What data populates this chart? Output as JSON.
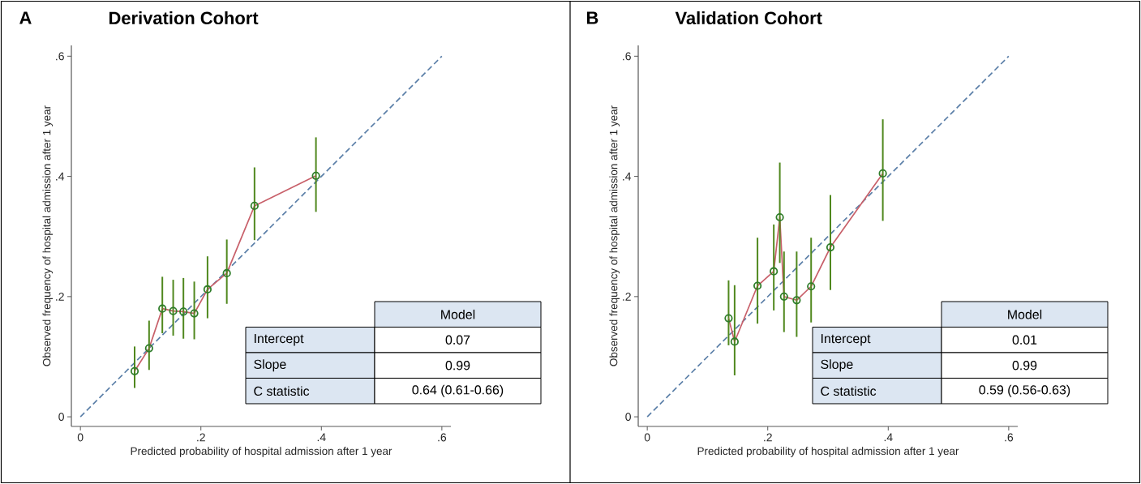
{
  "chart_data": [
    {
      "type": "scatter",
      "title": "Derivation Cohort",
      "xlabel": "Predicted probability of hospital admission after 1 year",
      "ylabel": "Observed frequency of hospital admission after 1 year",
      "annotations": [
        "A",
        "Model",
        "Intercept",
        "0.07",
        "Slope",
        "0.99",
        "C statistic",
        "0.64 (0.61-0.66)"
      ],
      "xlim": [
        -0.015,
        0.615
      ],
      "ylim": [
        -0.016,
        0.618
      ],
      "xticks": [
        0,
        {
          "value": 0.2,
          "label": ".2"
        },
        {
          "value": 0.4,
          "label": ".4"
        },
        {
          "value": 0.6,
          "label": ".6"
        }
      ],
      "yticks": [
        0,
        {
          "value": 0.2,
          "label": ".2"
        },
        {
          "value": 0.4,
          "label": ".4"
        },
        {
          "value": 0.6,
          "label": ".6"
        }
      ],
      "series": [
        {
          "type": "line",
          "color": "#5b7fa8",
          "line_style": "dashed",
          "x": [
            0,
            0.6
          ],
          "values": [
            0,
            0.6
          ]
        },
        {
          "type": "line",
          "color": "#c8606a",
          "x": [
            0.09,
            0.114,
            0.136,
            0.154,
            0.171,
            0.189,
            0.211,
            0.243,
            0.289,
            0.391
          ],
          "values": [
            0.076,
            0.114,
            0.18,
            0.176,
            0.175,
            0.172,
            0.212,
            0.239,
            0.351,
            0.401
          ]
        },
        {
          "color": "#2f7d2a",
          "marker": "circle",
          "x": [
            0.09,
            0.114,
            0.136,
            0.154,
            0.171,
            0.189,
            0.211,
            0.243,
            0.289,
            0.391
          ],
          "values": [
            0.076,
            0.114,
            0.18,
            0.176,
            0.175,
            0.172,
            0.212,
            0.239,
            0.351,
            0.401
          ],
          "errors": [
            [
              0.048,
              0.117
            ],
            [
              0.078,
              0.16
            ],
            [
              0.139,
              0.233
            ],
            [
              0.135,
              0.228
            ],
            [
              0.13,
              0.231
            ],
            [
              0.129,
              0.225
            ],
            [
              0.164,
              0.267
            ],
            [
              0.188,
              0.295
            ],
            [
              0.294,
              0.415
            ],
            [
              0.341,
              0.465
            ]
          ]
        }
      ]
    },
    {
      "type": "scatter",
      "title": "Validation Cohort",
      "xlabel": "Predicted probability of hospital admission after 1 year",
      "ylabel": "Observed frequency of hospital admission after 1 year",
      "annotations": [
        "B",
        "Model",
        "Intercept",
        "0.01",
        "Slope",
        "0.99",
        "C statistic",
        "0.59 (0.56-0.63)"
      ],
      "xlim": [
        -0.015,
        0.615
      ],
      "ylim": [
        -0.016,
        0.618
      ],
      "xticks": [
        0,
        {
          "value": 0.2,
          "label": ".2"
        },
        {
          "value": 0.4,
          "label": ".4"
        },
        {
          "value": 0.6,
          "label": ".6"
        }
      ],
      "yticks": [
        0,
        {
          "value": 0.2,
          "label": ".2"
        },
        {
          "value": 0.4,
          "label": ".4"
        },
        {
          "value": 0.6,
          "label": ".6"
        }
      ],
      "series": [
        {
          "type": "line",
          "color": "#5b7fa8",
          "line_style": "dashed",
          "x": [
            0,
            0.6
          ],
          "values": [
            0,
            0.6
          ]
        },
        {
          "type": "line",
          "color": "#c8606a",
          "x": [
            0.135,
            0.145,
            0.183,
            0.21,
            0.22,
            0.227,
            0.248,
            0.272,
            0.304,
            0.391
          ],
          "values": [
            0.164,
            0.125,
            0.218,
            0.242,
            0.332,
            0.2,
            0.194,
            0.217,
            0.282,
            0.405
          ]
        },
        {
          "color": "#2f7d2a",
          "marker": "circle",
          "x": [
            0.135,
            0.145,
            0.183,
            0.21,
            0.22,
            0.227,
            0.248,
            0.272,
            0.304,
            0.391
          ],
          "values": [
            0.164,
            0.125,
            0.218,
            0.242,
            0.332,
            0.2,
            0.194,
            0.217,
            0.282,
            0.405
          ],
          "errors": [
            [
              0.119,
              0.227
            ],
            [
              0.069,
              0.219
            ],
            [
              0.155,
              0.298
            ],
            [
              0.177,
              0.32
            ],
            [
              0.256,
              0.423
            ],
            [
              0.141,
              0.275
            ],
            [
              0.133,
              0.275
            ],
            [
              0.157,
              0.298
            ],
            [
              0.211,
              0.369
            ],
            [
              0.326,
              0.495
            ]
          ]
        }
      ]
    }
  ]
}
